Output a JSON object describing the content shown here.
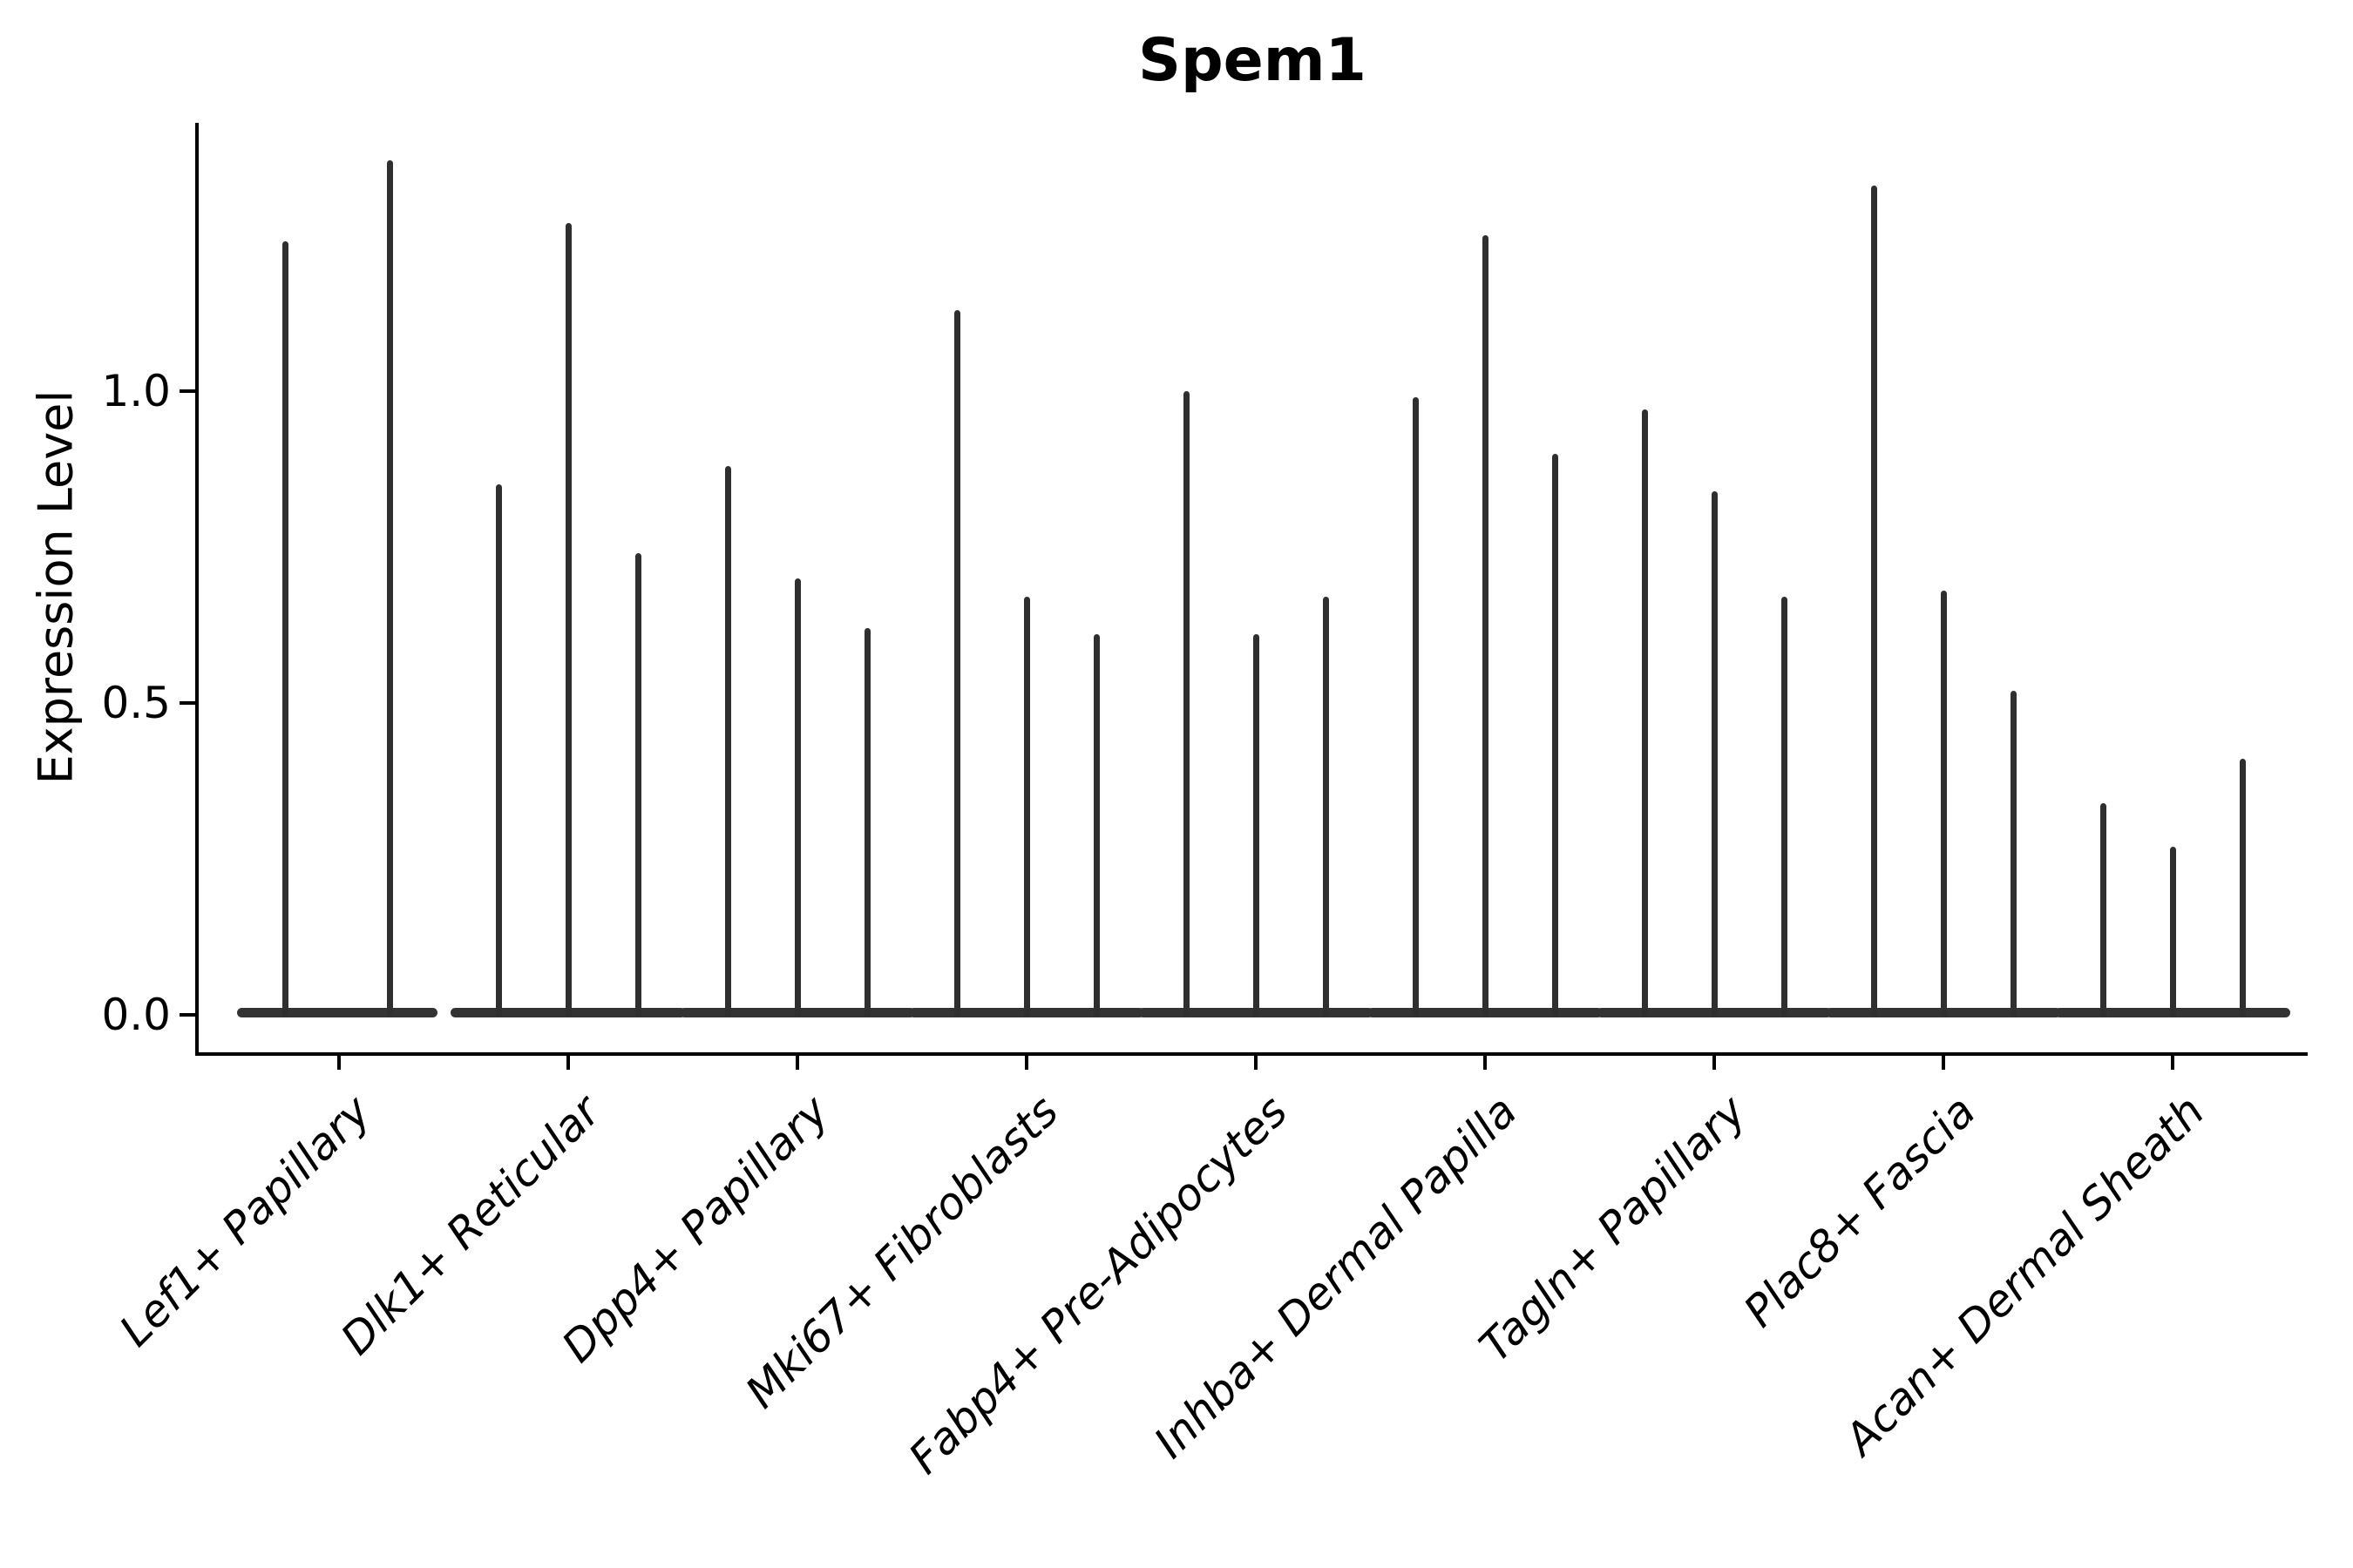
{
  "chart_data": {
    "type": "violin",
    "title": "Spem1",
    "xlabel": "",
    "ylabel": "Expression Level",
    "ytick_labels": [
      "0.0",
      "0.5",
      "1.0"
    ],
    "ytick_values": [
      0.0,
      0.5,
      1.0
    ],
    "ylim": [
      -0.06,
      1.43
    ],
    "grid": false,
    "legend": null,
    "x_tick_label_style": "italic, rotated 45deg, right-anchored",
    "categories": [
      "Lef1+ Papillary",
      "Dlk1+ Reticular",
      "Dpp4+ Papillary",
      "Mki67+ Fibroblasts",
      "Fabp4+ Pre-Adipocytes",
      "Inhba+ Dermal Papilla",
      "Tagln+ Papillary",
      "Plac8+ Fascia",
      "Acan+ Dermal Sheath"
    ],
    "description": "Violin plot of Spem1 expression; most cells near 0 giving flat violin bases with thin spikes up to each violin's maximum expression. Each category holds 2-3 narrow violins.",
    "groups": [
      {
        "category": "Lef1+ Papillary",
        "spike_max_values": [
          1.24,
          1.37
        ]
      },
      {
        "category": "Dlk1+ Reticular",
        "spike_max_values": [
          0.85,
          1.27,
          0.74
        ]
      },
      {
        "category": "Dpp4+ Papillary",
        "spike_max_values": [
          0.88,
          0.7,
          0.62
        ]
      },
      {
        "category": "Mki67+ Fibroblasts",
        "spike_max_values": [
          1.13,
          0.67,
          0.61
        ]
      },
      {
        "category": "Fabp4+ Pre-Adipocytes",
        "spike_max_values": [
          1.0,
          0.61,
          0.67
        ]
      },
      {
        "category": "Inhba+ Dermal Papilla",
        "spike_max_values": [
          0.99,
          1.25,
          0.9
        ]
      },
      {
        "category": "Tagln+ Papillary",
        "spike_max_values": [
          0.97,
          0.84,
          0.67
        ]
      },
      {
        "category": "Plac8+ Fascia",
        "spike_max_values": [
          1.33,
          0.68,
          0.52
        ]
      },
      {
        "category": "Acan+ Dermal Sheath",
        "spike_max_values": [
          0.34,
          0.27,
          0.41
        ]
      }
    ],
    "colors": {
      "violin": "#2f2f2f",
      "axis": "#000000",
      "background": "#ffffff",
      "text": "#000000"
    }
  }
}
